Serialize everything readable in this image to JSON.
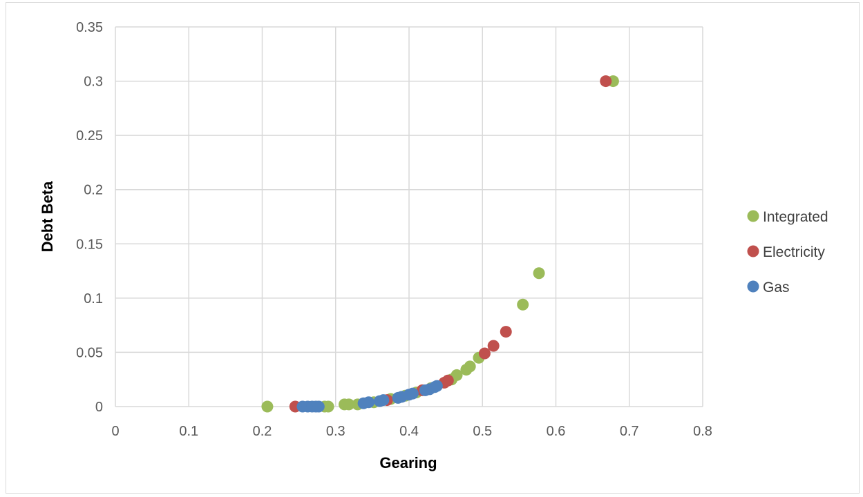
{
  "chart_data": {
    "type": "scatter",
    "xlabel": "Gearing",
    "ylabel": "Debt Beta",
    "xlim": [
      0,
      0.8
    ],
    "ylim": [
      0,
      0.35
    ],
    "x_ticks": [
      "0",
      "0.1",
      "0.2",
      "0.3",
      "0.4",
      "0.5",
      "0.6",
      "0.7",
      "0.8"
    ],
    "y_ticks": [
      "0",
      "0.05",
      "0.1",
      "0.15",
      "0.2",
      "0.25",
      "0.3",
      "0.35"
    ],
    "grid": true,
    "legend_position": "right",
    "series": [
      {
        "name": "Integrated",
        "color": "#9bbb59",
        "points": [
          [
            0.207,
            0.0
          ],
          [
            0.285,
            0.0
          ],
          [
            0.29,
            0.0
          ],
          [
            0.312,
            0.002
          ],
          [
            0.318,
            0.002
          ],
          [
            0.33,
            0.002
          ],
          [
            0.352,
            0.004
          ],
          [
            0.375,
            0.007
          ],
          [
            0.395,
            0.01
          ],
          [
            0.41,
            0.013
          ],
          [
            0.43,
            0.017
          ],
          [
            0.458,
            0.025
          ],
          [
            0.465,
            0.029
          ],
          [
            0.478,
            0.034
          ],
          [
            0.483,
            0.037
          ],
          [
            0.495,
            0.045
          ],
          [
            0.555,
            0.094
          ],
          [
            0.577,
            0.123
          ],
          [
            0.678,
            0.3
          ]
        ]
      },
      {
        "name": "Electricity",
        "color": "#c0504d",
        "points": [
          [
            0.245,
            0.0
          ],
          [
            0.37,
            0.006
          ],
          [
            0.418,
            0.015
          ],
          [
            0.448,
            0.022
          ],
          [
            0.453,
            0.024
          ],
          [
            0.503,
            0.049
          ],
          [
            0.515,
            0.056
          ],
          [
            0.532,
            0.069
          ],
          [
            0.668,
            0.3
          ]
        ]
      },
      {
        "name": "Gas",
        "color": "#4f81bd",
        "points": [
          [
            0.255,
            0.0
          ],
          [
            0.262,
            0.0
          ],
          [
            0.268,
            0.0
          ],
          [
            0.273,
            0.0
          ],
          [
            0.277,
            0.0
          ],
          [
            0.338,
            0.003
          ],
          [
            0.345,
            0.004
          ],
          [
            0.36,
            0.005
          ],
          [
            0.365,
            0.006
          ],
          [
            0.385,
            0.008
          ],
          [
            0.39,
            0.009
          ],
          [
            0.4,
            0.011
          ],
          [
            0.405,
            0.012
          ],
          [
            0.422,
            0.015
          ],
          [
            0.428,
            0.016
          ],
          [
            0.435,
            0.018
          ],
          [
            0.438,
            0.019
          ]
        ]
      }
    ]
  }
}
